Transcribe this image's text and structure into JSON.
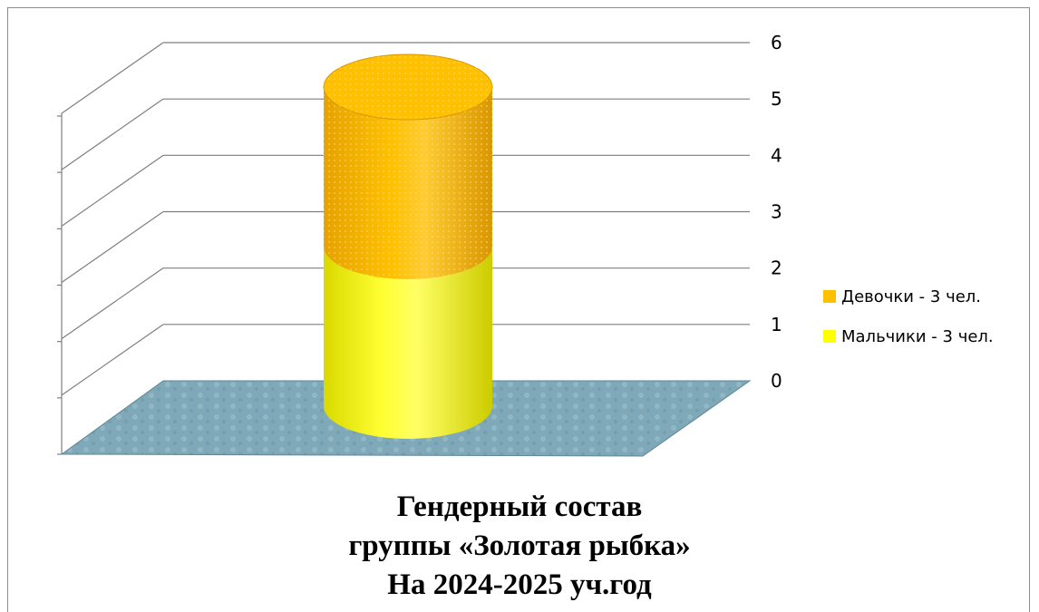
{
  "chart_data": {
    "type": "bar",
    "style": "3d-cylinder-stacked",
    "categories": [
      ""
    ],
    "series": [
      {
        "name": "Мальчики - 3 чел.",
        "values": [
          3
        ],
        "color": "#ffff00"
      },
      {
        "name": "Девочки - 3 чел.",
        "values": [
          3
        ],
        "color": "#ffc000"
      }
    ],
    "ylim": [
      0,
      6
    ],
    "yticks": [
      "0",
      "1",
      "2",
      "3",
      "4",
      "5",
      "6"
    ],
    "grid": true,
    "legend_position": "right",
    "floor_color": "#7fa9b8",
    "title_lines": [
      "Гендерный состав",
      "группы «Золотая рыбка»",
      "На 2024-2025 уч.год"
    ]
  }
}
